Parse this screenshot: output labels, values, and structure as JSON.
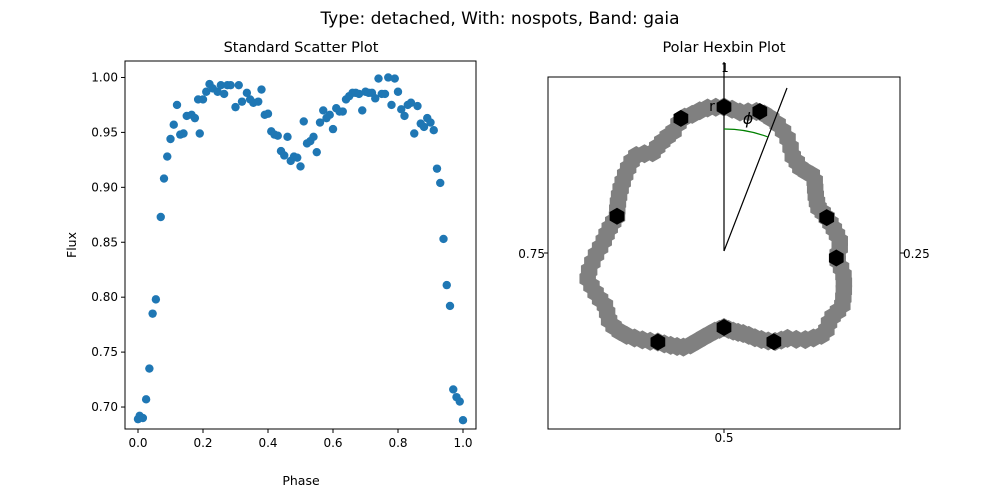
{
  "suptitle": "Type: detached, With: nospots, Band: gaia",
  "chart_data": [
    {
      "type": "scatter",
      "title": "Standard Scatter Plot",
      "xlabel": "Phase",
      "ylabel": "Flux",
      "xlim": [
        -0.04,
        1.04
      ],
      "ylim": [
        0.68,
        1.015
      ],
      "xticks": [
        0.0,
        0.2,
        0.4,
        0.6,
        0.8,
        1.0
      ],
      "xtick_labels": [
        "0.0",
        "0.2",
        "0.4",
        "0.6",
        "0.8",
        "1.0"
      ],
      "yticks": [
        0.7,
        0.75,
        0.8,
        0.85,
        0.9,
        0.95,
        1.0
      ],
      "ytick_labels": [
        "0.70",
        "0.75",
        "0.80",
        "0.85",
        "0.90",
        "0.95",
        "1.00"
      ],
      "color": "#1f77b4",
      "points": [
        [
          0.0,
          0.689
        ],
        [
          0.005,
          0.692
        ],
        [
          0.015,
          0.69
        ],
        [
          0.025,
          0.707
        ],
        [
          0.035,
          0.735
        ],
        [
          0.045,
          0.785
        ],
        [
          0.055,
          0.798
        ],
        [
          0.07,
          0.873
        ],
        [
          0.08,
          0.908
        ],
        [
          0.09,
          0.928
        ],
        [
          0.1,
          0.944
        ],
        [
          0.11,
          0.957
        ],
        [
          0.12,
          0.975
        ],
        [
          0.13,
          0.948
        ],
        [
          0.14,
          0.949
        ],
        [
          0.15,
          0.965
        ],
        [
          0.165,
          0.966
        ],
        [
          0.175,
          0.963
        ],
        [
          0.185,
          0.98
        ],
        [
          0.19,
          0.949
        ],
        [
          0.2,
          0.98
        ],
        [
          0.21,
          0.987
        ],
        [
          0.22,
          0.994
        ],
        [
          0.23,
          0.99
        ],
        [
          0.245,
          0.987
        ],
        [
          0.255,
          0.993
        ],
        [
          0.265,
          0.985
        ],
        [
          0.275,
          0.993
        ],
        [
          0.285,
          0.993
        ],
        [
          0.3,
          0.973
        ],
        [
          0.31,
          0.993
        ],
        [
          0.32,
          0.978
        ],
        [
          0.335,
          0.986
        ],
        [
          0.345,
          0.98
        ],
        [
          0.355,
          0.977
        ],
        [
          0.37,
          0.978
        ],
        [
          0.38,
          0.989
        ],
        [
          0.39,
          0.966
        ],
        [
          0.4,
          0.967
        ],
        [
          0.41,
          0.951
        ],
        [
          0.42,
          0.948
        ],
        [
          0.43,
          0.947
        ],
        [
          0.44,
          0.933
        ],
        [
          0.45,
          0.929
        ],
        [
          0.46,
          0.946
        ],
        [
          0.47,
          0.924
        ],
        [
          0.48,
          0.928
        ],
        [
          0.49,
          0.927
        ],
        [
          0.5,
          0.919
        ],
        [
          0.51,
          0.96
        ],
        [
          0.52,
          0.94
        ],
        [
          0.53,
          0.942
        ],
        [
          0.54,
          0.946
        ],
        [
          0.55,
          0.932
        ],
        [
          0.56,
          0.959
        ],
        [
          0.57,
          0.97
        ],
        [
          0.58,
          0.963
        ],
        [
          0.59,
          0.966
        ],
        [
          0.6,
          0.953
        ],
        [
          0.61,
          0.972
        ],
        [
          0.62,
          0.969
        ],
        [
          0.63,
          0.969
        ],
        [
          0.64,
          0.98
        ],
        [
          0.65,
          0.983
        ],
        [
          0.66,
          0.986
        ],
        [
          0.67,
          0.986
        ],
        [
          0.68,
          0.985
        ],
        [
          0.69,
          0.97
        ],
        [
          0.7,
          0.987
        ],
        [
          0.71,
          0.986
        ],
        [
          0.72,
          0.986
        ],
        [
          0.73,
          0.981
        ],
        [
          0.74,
          0.999
        ],
        [
          0.75,
          0.985
        ],
        [
          0.76,
          0.985
        ],
        [
          0.77,
          1.0
        ],
        [
          0.78,
          0.975
        ],
        [
          0.79,
          0.999
        ],
        [
          0.8,
          0.987
        ],
        [
          0.81,
          0.971
        ],
        [
          0.82,
          0.965
        ],
        [
          0.83,
          0.975
        ],
        [
          0.84,
          0.977
        ],
        [
          0.85,
          0.949
        ],
        [
          0.86,
          0.974
        ],
        [
          0.87,
          0.958
        ],
        [
          0.88,
          0.955
        ],
        [
          0.89,
          0.963
        ],
        [
          0.9,
          0.959
        ],
        [
          0.91,
          0.952
        ],
        [
          0.92,
          0.917
        ],
        [
          0.93,
          0.904
        ],
        [
          0.94,
          0.853
        ],
        [
          0.95,
          0.811
        ],
        [
          0.96,
          0.792
        ],
        [
          0.97,
          0.716
        ],
        [
          0.98,
          0.709
        ],
        [
          0.99,
          0.705
        ],
        [
          1.0,
          0.688
        ]
      ]
    },
    {
      "type": "hexbin",
      "title": "Polar Hexbin Plot",
      "tick_labels": {
        "top": "1",
        "right": "0.25",
        "bottom": "0.5",
        "left": "0.75"
      },
      "annotation_r": "r",
      "annotation_phi": "ϕ",
      "annotation_r_color": "#e00000",
      "annotation_phi_color": "#008000",
      "hex_light_color": "#808080",
      "hex_dark_color": "#000000",
      "note": "hex cells trace the light curve in polar form; level 1 = sparse, 2 = dense",
      "cells": [
        [
          0.0,
          0.99,
          2
        ],
        [
          0.02,
          0.985,
          1
        ],
        [
          0.04,
          0.99,
          2
        ],
        [
          0.06,
          0.985,
          1
        ],
        [
          0.08,
          0.975,
          1
        ],
        [
          0.1,
          0.96,
          1
        ],
        [
          0.12,
          0.955,
          1
        ],
        [
          0.14,
          0.96,
          1
        ],
        [
          0.16,
          0.95,
          1
        ],
        [
          0.18,
          0.945,
          1
        ],
        [
          0.2,
          0.95,
          2
        ],
        [
          0.22,
          0.955,
          1
        ],
        [
          0.24,
          0.96,
          1
        ],
        [
          0.26,
          0.955,
          2
        ],
        [
          0.28,
          0.965,
          1
        ],
        [
          0.3,
          0.97,
          1
        ],
        [
          0.32,
          0.975,
          1
        ],
        [
          0.34,
          0.97,
          1
        ],
        [
          0.36,
          0.975,
          1
        ],
        [
          0.38,
          0.965,
          1
        ],
        [
          0.4,
          0.95,
          1
        ],
        [
          0.42,
          0.945,
          2
        ],
        [
          0.44,
          0.935,
          1
        ],
        [
          0.46,
          0.925,
          1
        ],
        [
          0.48,
          0.92,
          1
        ],
        [
          0.5,
          0.915,
          2
        ],
        [
          0.52,
          0.92,
          1
        ],
        [
          0.54,
          0.93,
          1
        ],
        [
          0.56,
          0.945,
          1
        ],
        [
          0.58,
          0.95,
          1
        ],
        [
          0.6,
          0.955,
          2
        ],
        [
          0.62,
          0.965,
          1
        ],
        [
          0.64,
          0.975,
          1
        ],
        [
          0.66,
          0.98,
          1
        ],
        [
          0.68,
          0.975,
          1
        ],
        [
          0.7,
          0.98,
          1
        ],
        [
          0.72,
          0.985,
          1
        ],
        [
          0.74,
          0.975,
          1
        ],
        [
          0.76,
          0.965,
          1
        ],
        [
          0.78,
          0.96,
          1
        ],
        [
          0.8,
          0.955,
          2
        ],
        [
          0.82,
          0.96,
          1
        ],
        [
          0.84,
          0.965,
          1
        ],
        [
          0.86,
          0.97,
          1
        ],
        [
          0.88,
          0.975,
          1
        ],
        [
          0.9,
          0.965,
          1
        ],
        [
          0.92,
          0.97,
          1
        ],
        [
          0.94,
          0.975,
          1
        ],
        [
          0.96,
          0.985,
          1
        ],
        [
          0.98,
          0.99,
          1
        ],
        [
          0.95,
          0.985,
          2
        ]
      ]
    }
  ]
}
